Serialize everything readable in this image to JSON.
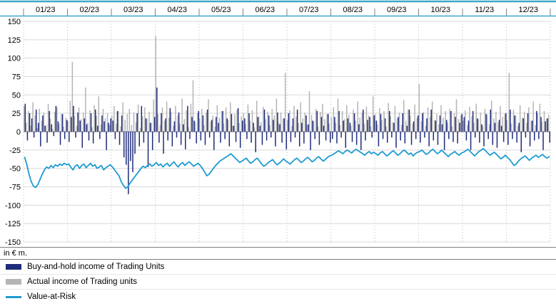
{
  "colors": {
    "navy": "#1F2C7C",
    "gray": "#B5B5B5",
    "line_blue": "#1E9BD2",
    "accent_border": "#3FA6C9",
    "gridline": "#D9D9D9",
    "vgridline": "#BFBFBF",
    "zero_line": "#666666",
    "tick": "#808080",
    "text": "#000000"
  },
  "chart_data": {
    "type": "combo_bar_line",
    "title": "",
    "xlabel": "",
    "ylabel": "",
    "unit_label": "in € m.",
    "legend_position": "bottom-left",
    "grid": true,
    "y_axis": {
      "min": -150,
      "max": 150,
      "step": 25
    },
    "x_labels": [
      "01/23",
      "02/23",
      "03/23",
      "04/23",
      "05/23",
      "06/23",
      "07/23",
      "08/23",
      "09/23",
      "10/23",
      "11/23",
      "12/23"
    ],
    "series": [
      {
        "name": "Buy-and-hold income of Trading Units",
        "type": "bar",
        "color": "#1F2C7C",
        "values": [
          38,
          -12,
          25,
          18,
          -8,
          30,
          12,
          -20,
          22,
          8,
          -15,
          28,
          10,
          -6,
          35,
          14,
          -18,
          24,
          -10,
          16,
          -14,
          20,
          35,
          -8,
          26,
          15,
          -22,
          18,
          10,
          -12,
          25,
          -16,
          30,
          8,
          -10,
          22,
          14,
          -25,
          12,
          18,
          15,
          -10,
          28,
          -18,
          22,
          -35,
          -45,
          -85,
          -40,
          -55,
          -30,
          25,
          -20,
          35,
          -15,
          18,
          -48,
          12,
          -25,
          20,
          60,
          -15,
          25,
          -30,
          18,
          -12,
          32,
          -20,
          14,
          -8,
          26,
          -18,
          10,
          -24,
          35,
          -10,
          20,
          15,
          -16,
          28,
          -12,
          22,
          -18,
          30,
          -8,
          16,
          -25,
          20,
          12,
          -15,
          28,
          -10,
          18,
          -20,
          24,
          8,
          -14,
          32,
          -22,
          15,
          18,
          -10,
          25,
          -15,
          12,
          -28,
          20,
          8,
          -18,
          30,
          -12,
          22,
          -8,
          16,
          -20,
          26,
          10,
          -15,
          18,
          -24,
          25,
          -14,
          18,
          -8,
          30,
          -20,
          12,
          -16,
          22,
          10,
          -25,
          15,
          -10,
          28,
          -18,
          20,
          8,
          -12,
          24,
          -15,
          -10,
          20,
          -16,
          28,
          -8,
          15,
          -22,
          18,
          12,
          -14,
          25,
          -18,
          10,
          -25,
          30,
          -12,
          16,
          20,
          -8,
          22,
          15,
          -20,
          24,
          -10,
          18,
          -15,
          28,
          -8,
          12,
          -22,
          20,
          -12,
          25,
          -16,
          8,
          30,
          -18,
          14,
          -10,
          22,
          -15,
          25,
          -8,
          18,
          -20,
          30,
          -12,
          15,
          -18,
          22,
          10,
          -25,
          16,
          -10,
          28,
          -14,
          20,
          -16,
          12,
          24,
          20,
          -12,
          15,
          -25,
          28,
          -8,
          18,
          -15,
          10,
          -20,
          24,
          -10,
          30,
          -18,
          12,
          -22,
          16,
          8,
          -14,
          25,
          -18,
          30,
          -10,
          22,
          -15,
          12,
          -28,
          18,
          -8,
          25,
          -20,
          15,
          -12,
          28,
          -10,
          20,
          -25,
          14,
          18,
          -15
        ]
      },
      {
        "name": "Actual income of Trading units",
        "type": "bar",
        "color": "#B5B5B5",
        "values": [
          35,
          12,
          28,
          8,
          40,
          22,
          5,
          31,
          15,
          26,
          9,
          38,
          18,
          4,
          27,
          33,
          11,
          24,
          7,
          19,
          14,
          42,
          95,
          21,
          8,
          33,
          17,
          26,
          60,
          12,
          29,
          6,
          36,
          22,
          48,
          10,
          31,
          18,
          25,
          9,
          22,
          35,
          11,
          28,
          7,
          40,
          16,
          24,
          31,
          9,
          26,
          13,
          37,
          5,
          21,
          33,
          18,
          27,
          12,
          44,
          130,
          24,
          9,
          33,
          15,
          41,
          19,
          27,
          8,
          35,
          22,
          11,
          45,
          17,
          29,
          6,
          38,
          70,
          13,
          25,
          18,
          31,
          9,
          26,
          44,
          14,
          22,
          7,
          36,
          19,
          28,
          11,
          33,
          16,
          40,
          8,
          24,
          30,
          12,
          21,
          25,
          10,
          37,
          15,
          29,
          6,
          42,
          20,
          13,
          34,
          17,
          27,
          9,
          31,
          22,
          45,
          12,
          26,
          18,
          80,
          16,
          29,
          8,
          35,
          21,
          12,
          40,
          18,
          26,
          9,
          55,
          23,
          14,
          31,
          7,
          27,
          38,
          17,
          24,
          11,
          20,
          33,
          12,
          45,
          9,
          28,
          17,
          36,
          23,
          8,
          30,
          15,
          41,
          19,
          26,
          11,
          34,
          22,
          7,
          48,
          24,
          10,
          32,
          16,
          28,
          7,
          39,
          21,
          13,
          35,
          18,
          26,
          9,
          43,
          15,
          30,
          22,
          11,
          37,
          19,
          65,
          14,
          27,
          8,
          33,
          20,
          41,
          16,
          24,
          10,
          36,
          19,
          28,
          12,
          31,
          7,
          25,
          44,
          17,
          22,
          15,
          29,
          9,
          34,
          21,
          12,
          38,
          17,
          26,
          8,
          31,
          23,
          10,
          42,
          18,
          27,
          13,
          35,
          20,
          24,
          16,
          80,
          11,
          30,
          22,
          8,
          36,
          19,
          27,
          12,
          33,
          15,
          41,
          9,
          25,
          38,
          14,
          28,
          18,
          23
        ]
      },
      {
        "name": "Value-at-Risk",
        "type": "line",
        "color": "#1E9BD2",
        "values": [
          -35,
          -45,
          -58,
          -68,
          -74,
          -76,
          -72,
          -65,
          -58,
          -52,
          -48,
          -50,
          -46,
          -49,
          -45,
          -47,
          -44,
          -46,
          -43,
          -45,
          -44,
          -48,
          -52,
          -47,
          -45,
          -50,
          -46,
          -44,
          -49,
          -46,
          -43,
          -47,
          -45,
          -50,
          -48,
          -46,
          -52,
          -49,
          -47,
          -45,
          -48,
          -52,
          -56,
          -60,
          -68,
          -73,
          -77,
          -75,
          -70,
          -66,
          -62,
          -58,
          -54,
          -50,
          -47,
          -49,
          -46,
          -44,
          -47,
          -45,
          -42,
          -46,
          -44,
          -48,
          -45,
          -43,
          -47,
          -44,
          -41,
          -45,
          -48,
          -44,
          -42,
          -46,
          -43,
          -41,
          -44,
          -47,
          -45,
          -43,
          -46,
          -50,
          -55,
          -60,
          -58,
          -54,
          -50,
          -46,
          -43,
          -40,
          -38,
          -36,
          -34,
          -32,
          -30,
          -33,
          -36,
          -39,
          -42,
          -40,
          -38,
          -36,
          -40,
          -43,
          -41,
          -38,
          -36,
          -40,
          -44,
          -47,
          -45,
          -42,
          -40,
          -38,
          -42,
          -45,
          -43,
          -40,
          -37,
          -40,
          -42,
          -44,
          -41,
          -38,
          -36,
          -39,
          -42,
          -40,
          -37,
          -35,
          -38,
          -41,
          -39,
          -36,
          -34,
          -37,
          -40,
          -38,
          -35,
          -33,
          -32,
          -30,
          -28,
          -26,
          -28,
          -30,
          -27,
          -25,
          -27,
          -29,
          -26,
          -24,
          -26,
          -28,
          -30,
          -32,
          -29,
          -27,
          -30,
          -28,
          -30,
          -32,
          -29,
          -27,
          -30,
          -33,
          -31,
          -28,
          -26,
          -29,
          -32,
          -30,
          -27,
          -25,
          -28,
          -31,
          -29,
          -33,
          -30,
          -28,
          -27,
          -25,
          -28,
          -31,
          -29,
          -26,
          -24,
          -27,
          -30,
          -28,
          -25,
          -28,
          -31,
          -34,
          -31,
          -29,
          -27,
          -30,
          -32,
          -29,
          -28,
          -26,
          -24,
          -27,
          -30,
          -33,
          -30,
          -27,
          -25,
          -23,
          -26,
          -29,
          -32,
          -30,
          -28,
          -31,
          -34,
          -37,
          -35,
          -32,
          -35,
          -38,
          -42,
          -46,
          -44,
          -40,
          -37,
          -35,
          -33,
          -36,
          -39,
          -36,
          -34,
          -32,
          -35,
          -33,
          -31,
          -34,
          -36,
          -34
        ]
      }
    ]
  }
}
